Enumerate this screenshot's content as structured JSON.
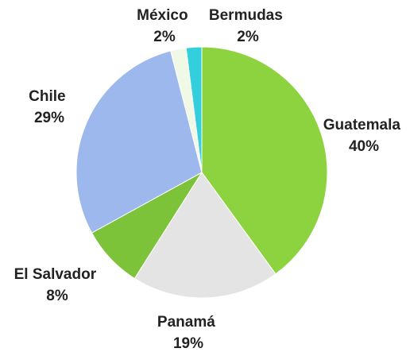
{
  "chart_data": {
    "type": "pie",
    "title": "",
    "start_angle_deg": 0,
    "direction": "clockwise",
    "legend": "none",
    "slices": [
      {
        "label": "Guatemala",
        "value": 40,
        "value_label": "40%",
        "color": "#8dd33f"
      },
      {
        "label": "Panamá",
        "value": 19,
        "value_label": "19%",
        "color": "#e4e4e4"
      },
      {
        "label": "El Salvador",
        "value": 8,
        "value_label": "8%",
        "color": "#7dc339"
      },
      {
        "label": "Chile",
        "value": 29,
        "value_label": "29%",
        "color": "#9db8ec"
      },
      {
        "label": "México",
        "value": 2,
        "value_label": "2%",
        "color": "#f0f9e6"
      },
      {
        "label": "Bermudas",
        "value": 2,
        "value_label": "2%",
        "color": "#33cfdd"
      }
    ]
  }
}
